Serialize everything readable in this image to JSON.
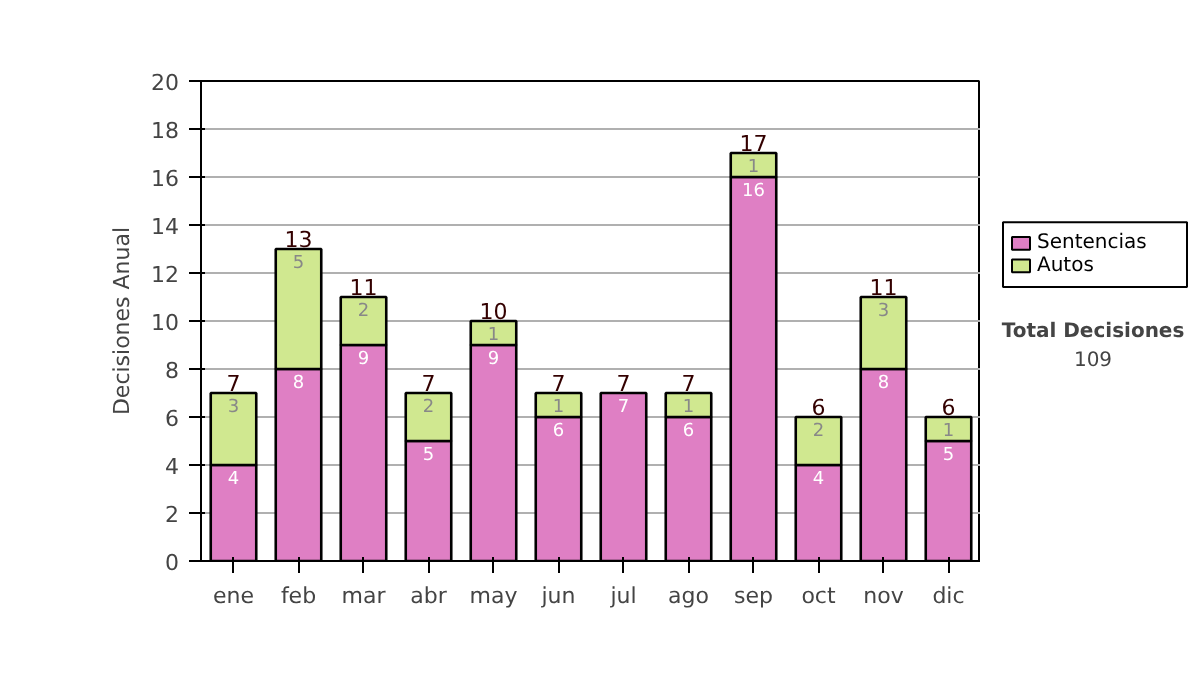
{
  "chart_data": {
    "type": "bar",
    "stacked": true,
    "ylabel": "Decisiones Anual",
    "categories": [
      "ene",
      "feb",
      "mar",
      "abr",
      "may",
      "jun",
      "jul",
      "ago",
      "sep",
      "oct",
      "nov",
      "dic"
    ],
    "series": [
      {
        "name": "Sentencias",
        "color": "#df7fc4",
        "values": [
          4,
          8,
          9,
          5,
          9,
          6,
          7,
          6,
          16,
          4,
          8,
          5
        ],
        "value_labels": [
          "4",
          "8",
          "9",
          "5",
          "9",
          "6",
          "7",
          "6",
          "16",
          "4",
          "8",
          "5"
        ]
      },
      {
        "name": "Autos",
        "color": "#d0e890",
        "values": [
          3,
          5,
          2,
          2,
          1,
          1,
          null,
          1,
          1,
          2,
          3,
          1
        ],
        "value_labels": [
          "3",
          "5",
          "2",
          "2",
          "1",
          "1",
          null,
          "1",
          "1",
          "2",
          "3",
          "1"
        ]
      }
    ],
    "totals": [
      "7",
      "13",
      "11",
      "7",
      "10",
      "7",
      "7",
      "7",
      "17",
      "6",
      "11",
      "6"
    ],
    "ylim": [
      0,
      20
    ],
    "yticks": [
      0,
      2,
      4,
      6,
      8,
      10,
      12,
      14,
      16,
      18,
      20
    ],
    "grid": "y",
    "legend": "right",
    "annotations": [
      "Total Decisiones",
      "109"
    ]
  }
}
